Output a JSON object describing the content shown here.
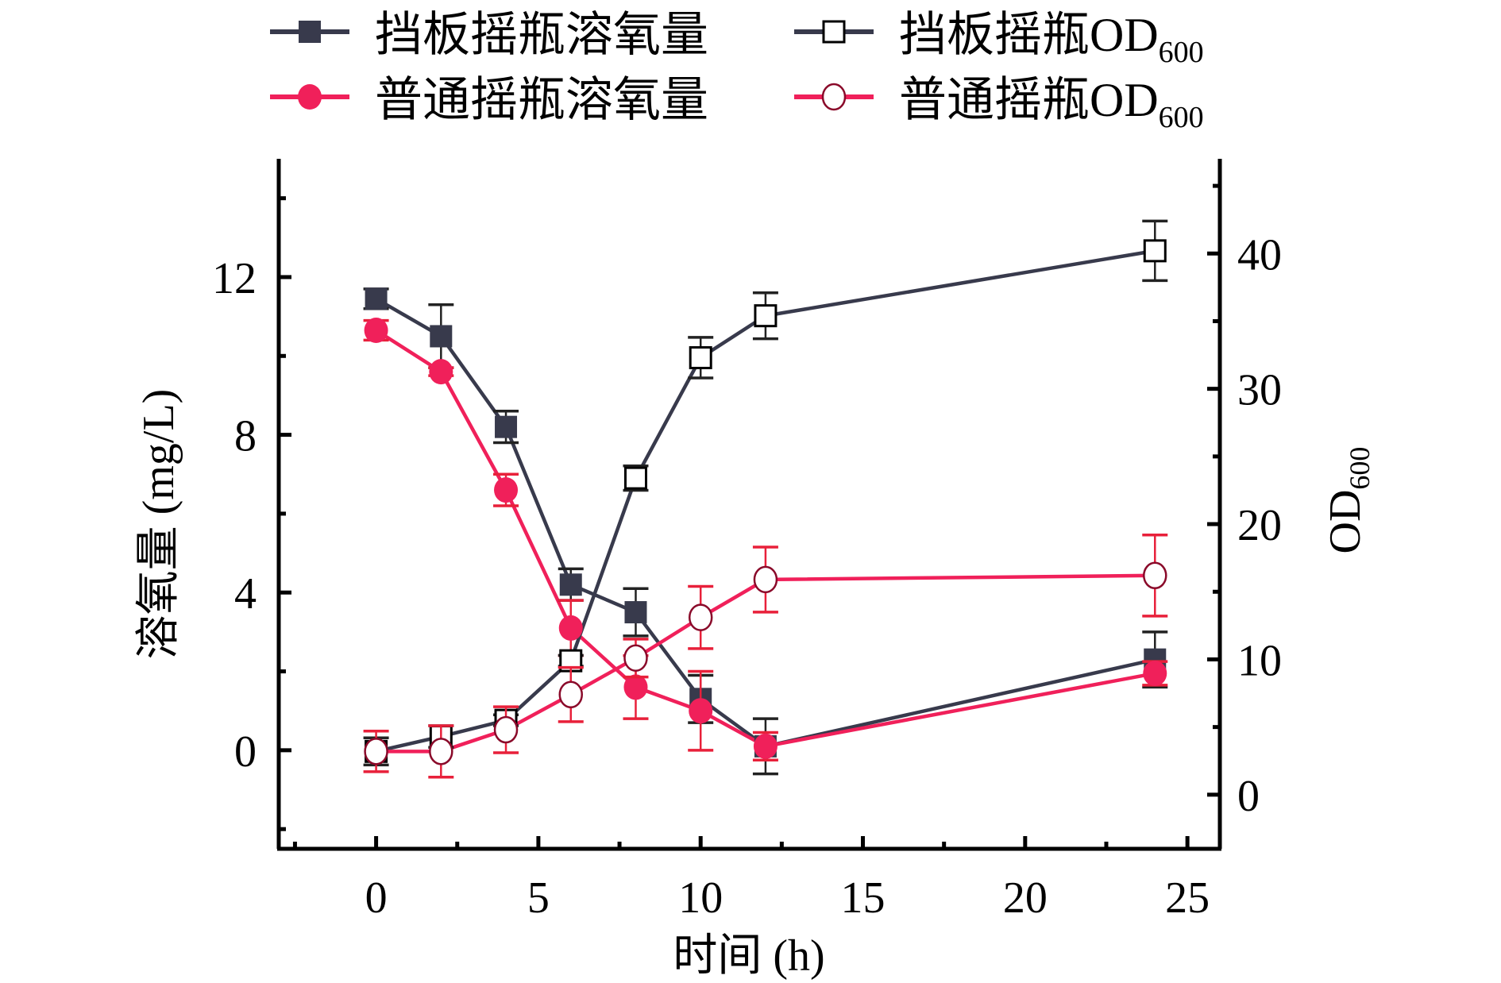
{
  "chart_data": {
    "type": "line",
    "title": "",
    "xlabel": "时间 (h)",
    "ylabel_left": "溶氧量 (mg/L)",
    "ylabel_right": "OD",
    "ylabel_right_sub": "600",
    "xlim": [
      -3,
      26
    ],
    "ylim_left": [
      -2.5,
      15
    ],
    "ylim_right": [
      -4,
      47
    ],
    "xticks": [
      0,
      5,
      10,
      15,
      20,
      25
    ],
    "yticks_left": [
      0,
      4,
      8,
      12
    ],
    "yticks_right": [
      0,
      10,
      20,
      30,
      40
    ],
    "grid": false,
    "legend_position": "top",
    "x": [
      0,
      2,
      4,
      6,
      8,
      10,
      12,
      24
    ],
    "series": [
      {
        "name": "挡板摇瓶溶氧量",
        "axis": "left",
        "marker": "square-filled",
        "color": "#383a4c",
        "values": [
          11.45,
          10.5,
          8.2,
          4.2,
          3.5,
          1.3,
          0.1,
          2.3
        ],
        "errors": [
          0.25,
          0.8,
          0.4,
          0.4,
          0.6,
          0.6,
          0.7,
          0.7
        ]
      },
      {
        "name": "普通摇瓶溶氧量",
        "axis": "left",
        "marker": "circle-filled",
        "color": "#f0205a",
        "values": [
          10.65,
          9.6,
          6.6,
          3.1,
          1.6,
          1.0,
          0.1,
          1.95
        ],
        "errors": [
          0.25,
          0.1,
          0.4,
          0.7,
          0.8,
          1.0,
          0.35,
          0.3
        ]
      },
      {
        "name": "挡板摇瓶OD",
        "name_sub": "600",
        "axis": "right",
        "marker": "square-open",
        "color": "#383a4c",
        "values": [
          3.2,
          4.3,
          5.5,
          9.9,
          23.4,
          32.3,
          35.4,
          40.2
        ],
        "errors": [
          1.0,
          0.8,
          0.4,
          0.4,
          0.9,
          1.5,
          1.7,
          2.2
        ]
      },
      {
        "name": "普通摇瓶OD",
        "name_sub": "600",
        "axis": "right",
        "marker": "circle-open",
        "color": "#f0205a",
        "values": [
          3.2,
          3.2,
          4.8,
          7.4,
          10.1,
          13.1,
          15.9,
          16.2
        ],
        "errors": [
          1.5,
          1.9,
          1.7,
          2.0,
          1.4,
          2.3,
          2.4,
          3.0
        ]
      }
    ]
  }
}
